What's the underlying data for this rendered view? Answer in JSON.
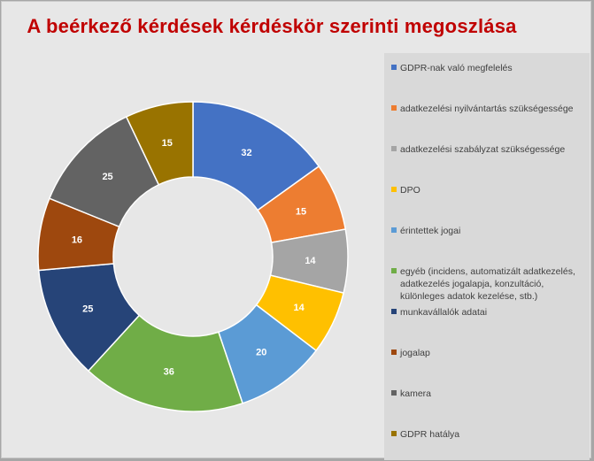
{
  "chart_data": {
    "type": "pie",
    "title": "A beérkező kérdések kérdéskör szerinti megoszlása",
    "categories": [
      "GDPR-nak való megfelelés",
      "adatkezelési nyilvántartás szükségessége",
      "adatkezelési szabályzat szükségessége",
      "DPO",
      "érintettek jogai",
      "egyéb (incidens, automatizált adatkezelés, adatkezelés jogalapja, konzultáció, különleges adatok kezelése, stb.)",
      "munkavállalók adatai",
      "jogalap",
      "kamera",
      "GDPR hatálya"
    ],
    "values": [
      32,
      15,
      14,
      14,
      20,
      36,
      25,
      16,
      25,
      15
    ],
    "colors": [
      "#4472c4",
      "#ed7d31",
      "#a5a5a5",
      "#ffc000",
      "#5b9bd5",
      "#70ad47",
      "#264478",
      "#9e480e",
      "#636363",
      "#997300"
    ],
    "legend_position": "right",
    "hole": "donut"
  }
}
